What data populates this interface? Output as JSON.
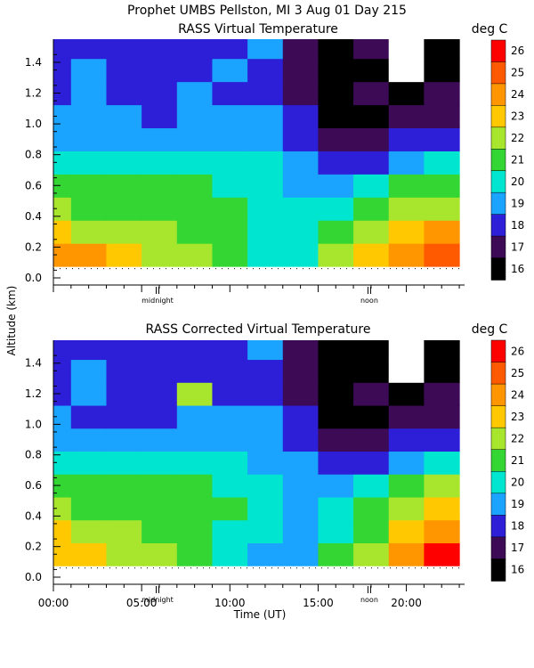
{
  "header": {
    "title": "Prophet  UMBS Pellston, MI    3 Aug 01 Day 215"
  },
  "axes": {
    "ylabel": "Altitude (km)",
    "xlabel": "Time (UT)",
    "yticks": [
      "0.0",
      "0.2",
      "0.4",
      "0.6",
      "0.8",
      "1.0",
      "1.2",
      "1.4"
    ],
    "xticks": [
      "00:00",
      "05:00",
      "10:00",
      "15:00",
      "20:00"
    ],
    "markers": [
      {
        "label": "midnight",
        "hour": 5.9
      },
      {
        "label": "noon",
        "hour": 17.9
      }
    ]
  },
  "colorbar": {
    "unit": "deg C",
    "levels": [
      "26",
      "25",
      "24",
      "23",
      "22",
      "21",
      "20",
      "19",
      "18",
      "17",
      "16"
    ],
    "colors": {
      "16": "#000000",
      "17": "#3d0a55",
      "18": "#2d1fd8",
      "19": "#1aa3ff",
      "20": "#00e5cf",
      "21": "#33d633",
      "22": "#a8e62e",
      "23": "#ffc800",
      "24": "#ff9600",
      "25": "#ff5a00",
      "26": "#ff0000"
    },
    "above_max_color": "#ffffff"
  },
  "panels": [
    {
      "title": "RASS Virtual Temperature"
    },
    {
      "title": "RASS Corrected Virtual Temperature"
    }
  ],
  "chart_data": [
    {
      "type": "heatmap",
      "title": "RASS Virtual Temperature",
      "xlabel": "Time (UT)",
      "ylabel": "Altitude (km)",
      "colorbar_label": "deg C",
      "xlim": [
        0,
        23.3
      ],
      "ylim": [
        0.0,
        1.55
      ],
      "x_hours": [
        0,
        2,
        4,
        6,
        8,
        10,
        12,
        14,
        16,
        18,
        20,
        22
      ],
      "y_km": [
        0.15,
        0.3,
        0.45,
        0.6,
        0.75,
        0.9,
        1.05,
        1.2,
        1.35,
        1.5
      ],
      "values_degC": [
        [
          24,
          24,
          23,
          22,
          22,
          21,
          20,
          20,
          22,
          23,
          24,
          25
        ],
        [
          23,
          22,
          22,
          22,
          21,
          21,
          20,
          20,
          21,
          22,
          23,
          24
        ],
        [
          22,
          21,
          21,
          21,
          21,
          21,
          20,
          20,
          20,
          21,
          22,
          22
        ],
        [
          21,
          21,
          21,
          21,
          21,
          20,
          20,
          19,
          19,
          20,
          21,
          21
        ],
        [
          20,
          20,
          20,
          20,
          20,
          20,
          20,
          19,
          18,
          18,
          19,
          20
        ],
        [
          19,
          19,
          19,
          19,
          19,
          19,
          19,
          18,
          17,
          17,
          18,
          18
        ],
        [
          19,
          19,
          19,
          18,
          19,
          19,
          19,
          18,
          16,
          16,
          17,
          17
        ],
        [
          18,
          19,
          18,
          18,
          19,
          18,
          18,
          17,
          16,
          17,
          16,
          17
        ],
        [
          18,
          19,
          18,
          18,
          18,
          19,
          18,
          17,
          16,
          16,
          27,
          16
        ],
        [
          18,
          18,
          18,
          18,
          18,
          18,
          19,
          17,
          16,
          17,
          27,
          16
        ]
      ]
    },
    {
      "type": "heatmap",
      "title": "RASS Corrected Virtual Temperature",
      "xlabel": "Time (UT)",
      "ylabel": "Altitude (km)",
      "colorbar_label": "deg C",
      "xlim": [
        0,
        23.3
      ],
      "ylim": [
        0.0,
        1.55
      ],
      "x_hours": [
        0,
        2,
        4,
        6,
        8,
        10,
        12,
        14,
        16,
        18,
        20,
        22
      ],
      "y_km": [
        0.15,
        0.3,
        0.45,
        0.6,
        0.75,
        0.9,
        1.05,
        1.2,
        1.35,
        1.5
      ],
      "values_degC": [
        [
          23,
          23,
          22,
          22,
          21,
          20,
          19,
          19,
          21,
          22,
          24,
          26
        ],
        [
          23,
          22,
          22,
          21,
          21,
          20,
          20,
          19,
          20,
          21,
          23,
          24
        ],
        [
          22,
          21,
          21,
          21,
          21,
          21,
          20,
          19,
          20,
          21,
          22,
          23
        ],
        [
          21,
          21,
          21,
          21,
          21,
          20,
          20,
          19,
          19,
          20,
          21,
          22
        ],
        [
          20,
          20,
          20,
          20,
          20,
          20,
          19,
          19,
          18,
          18,
          19,
          20
        ],
        [
          19,
          19,
          19,
          19,
          19,
          19,
          19,
          18,
          17,
          17,
          18,
          18
        ],
        [
          19,
          18,
          18,
          18,
          19,
          19,
          19,
          18,
          16,
          16,
          17,
          17
        ],
        [
          18,
          19,
          18,
          18,
          22,
          18,
          18,
          17,
          16,
          17,
          16,
          17
        ],
        [
          18,
          19,
          18,
          18,
          18,
          18,
          18,
          17,
          16,
          16,
          27,
          16
        ],
        [
          18,
          18,
          18,
          18,
          18,
          18,
          19,
          17,
          16,
          16,
          27,
          16
        ]
      ]
    }
  ]
}
